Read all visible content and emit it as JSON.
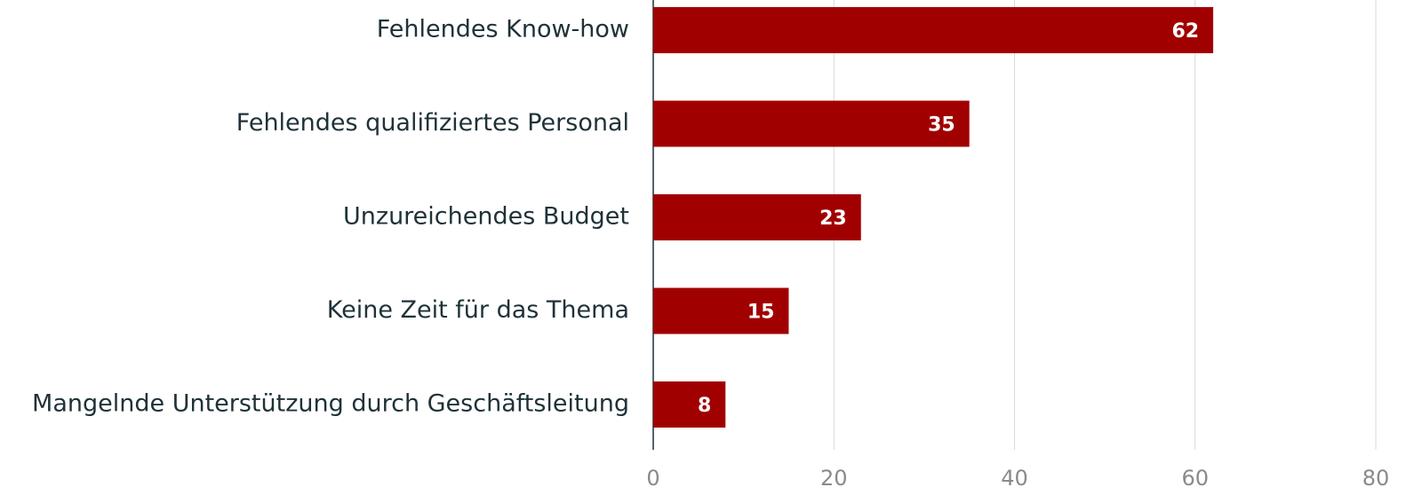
{
  "chart_data": {
    "type": "barh",
    "categories": [
      "Fehlendes Know-how",
      "Fehlendes qualifiziertes Personal",
      "Unzureichendes Budget",
      "Keine Zeit für das Thema",
      "Mangelnde Unterstützung durch Geschäftsleitung"
    ],
    "values": [
      62,
      35,
      23,
      15,
      8
    ],
    "color": "#a10000",
    "xlim": [
      0,
      80
    ],
    "xticks": [
      0,
      20,
      40,
      60,
      80
    ],
    "grid": true
  }
}
